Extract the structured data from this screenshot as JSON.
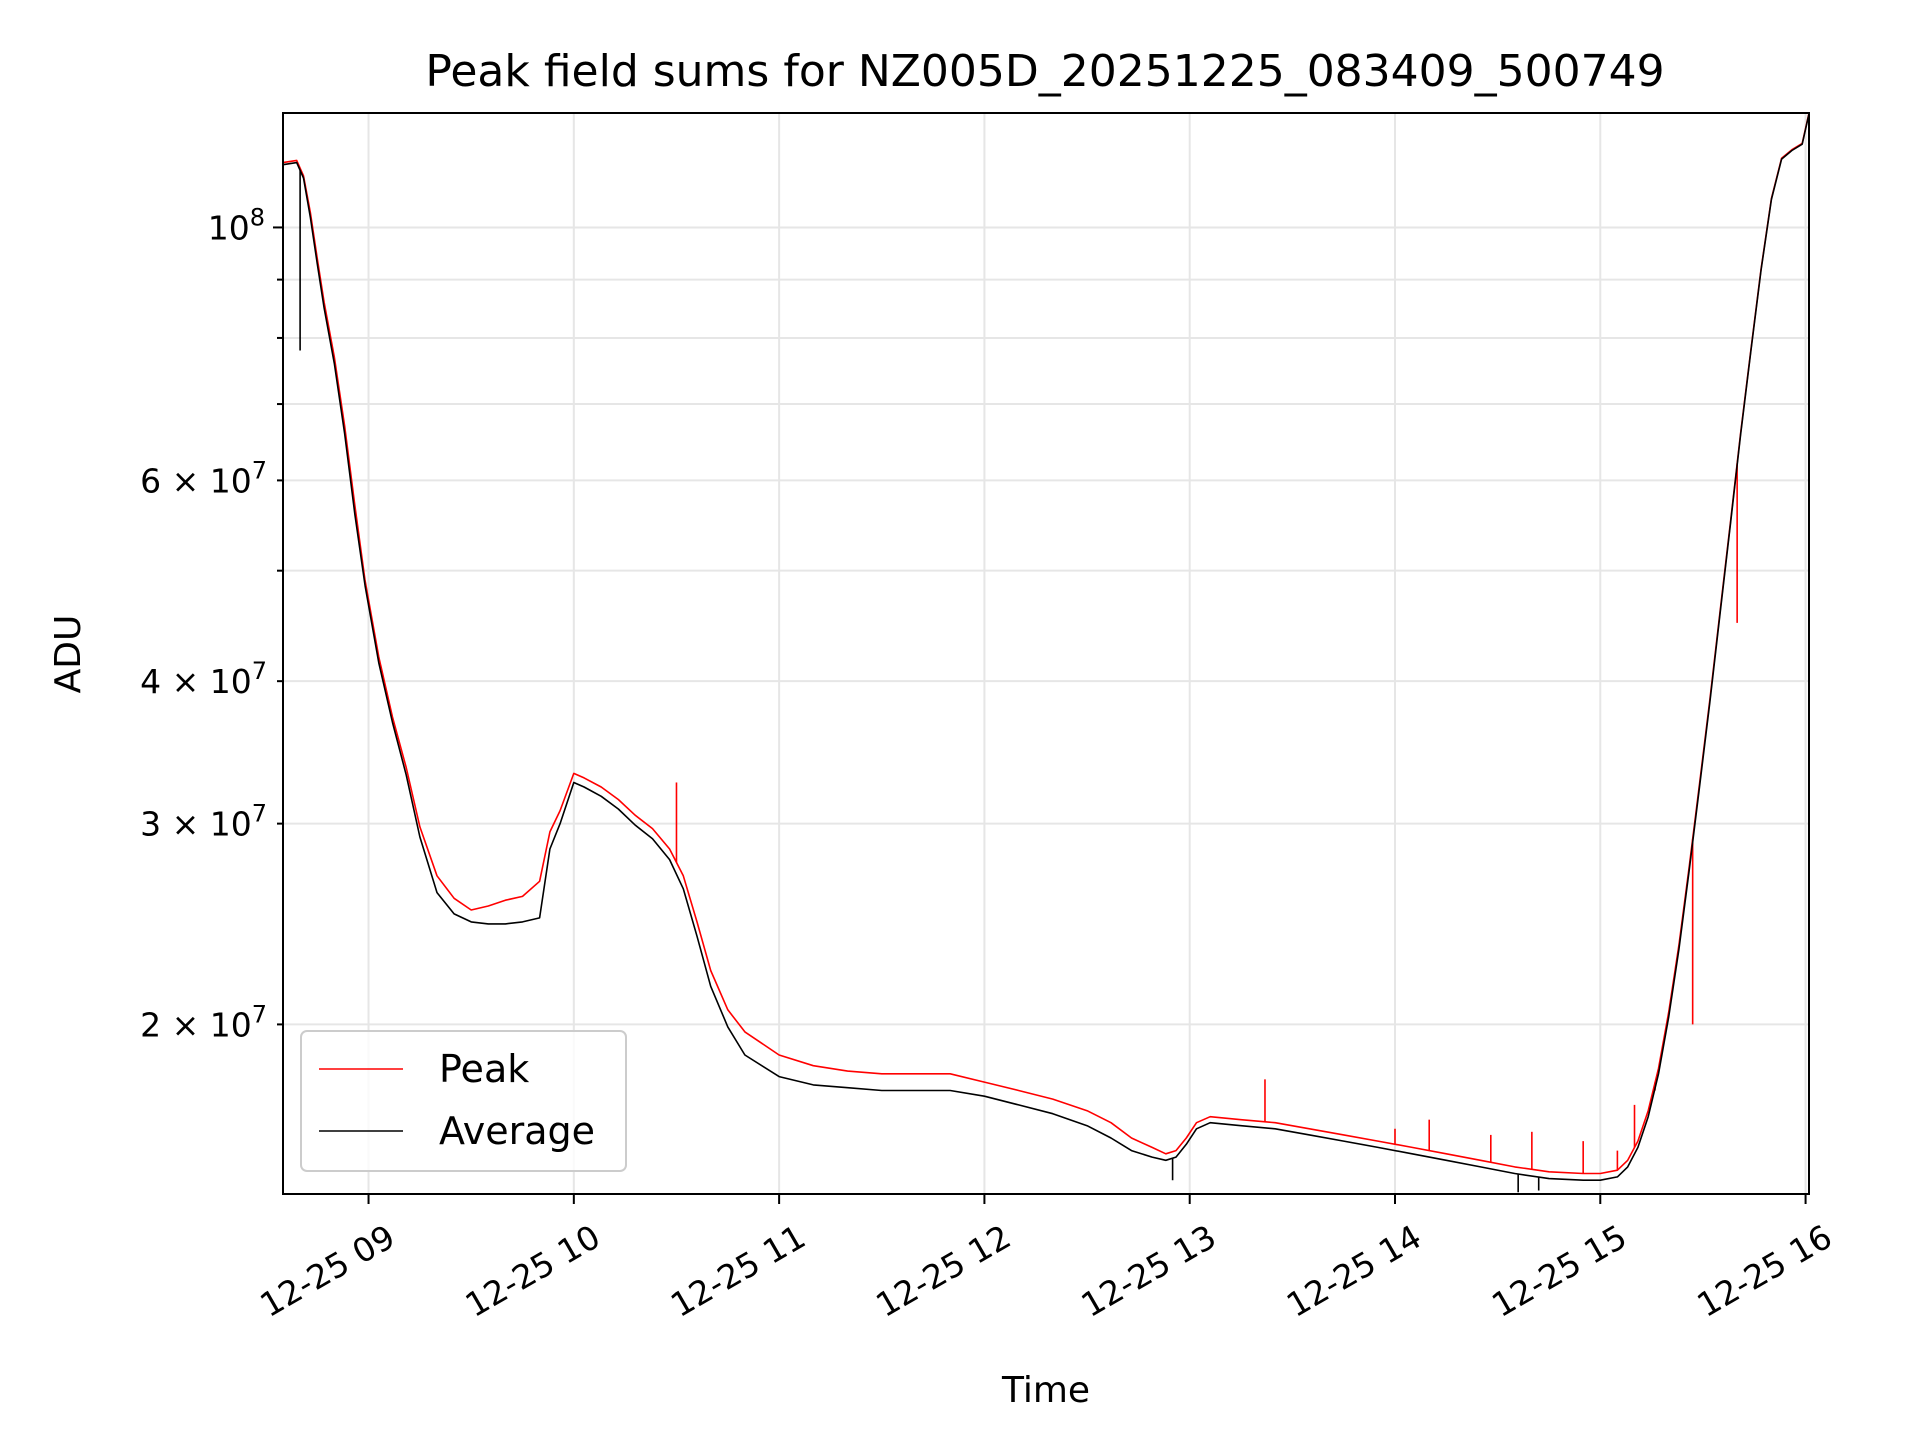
{
  "chart_data": {
    "type": "line",
    "title": "Peak field sums for NZ005D_20251225_083409_500749",
    "xlabel": "Time",
    "ylabel": "ADU",
    "yscale": "log",
    "grid": true,
    "legend_position": "lower-left",
    "xlim": [
      "2025-12-25 08:35",
      "2025-12-25 16:01"
    ],
    "ylim": [
      14200000,
      126000000
    ],
    "x_ticks": [
      {
        "value": "2025-12-25 09:00",
        "label": "12-25 09"
      },
      {
        "value": "2025-12-25 10:00",
        "label": "12-25 10"
      },
      {
        "value": "2025-12-25 11:00",
        "label": "12-25 11"
      },
      {
        "value": "2025-12-25 12:00",
        "label": "12-25 12"
      },
      {
        "value": "2025-12-25 13:00",
        "label": "12-25 13"
      },
      {
        "value": "2025-12-25 14:00",
        "label": "12-25 14"
      },
      {
        "value": "2025-12-25 15:00",
        "label": "12-25 15"
      },
      {
        "value": "2025-12-25 16:00",
        "label": "12-25 16"
      }
    ],
    "y_ticks_major": [
      {
        "value": 100000000,
        "base": "10",
        "exp": "8"
      }
    ],
    "y_ticks_minor": [
      {
        "value": 20000000,
        "mant": "2",
        "exp": "7"
      },
      {
        "value": 30000000,
        "mant": "3",
        "exp": "7"
      },
      {
        "value": 40000000,
        "mant": "4",
        "exp": "7"
      },
      {
        "value": 60000000,
        "mant": "6",
        "exp": "7"
      }
    ],
    "y_ticks_minor_unlabeled": [
      50000000,
      70000000,
      80000000,
      90000000
    ],
    "series": [
      {
        "name": "Peak",
        "color": "#ff0000",
        "x": [
          "2025-12-25 08:35",
          "2025-12-25 08:39",
          "2025-12-25 08:41",
          "2025-12-25 08:43",
          "2025-12-25 08:45",
          "2025-12-25 08:47",
          "2025-12-25 08:50",
          "2025-12-25 08:53",
          "2025-12-25 08:56",
          "2025-12-25 08:59",
          "2025-12-25 09:03",
          "2025-12-25 09:07",
          "2025-12-25 09:11",
          "2025-12-25 09:15",
          "2025-12-25 09:20",
          "2025-12-25 09:25",
          "2025-12-25 09:30",
          "2025-12-25 09:35",
          "2025-12-25 09:40",
          "2025-12-25 09:45",
          "2025-12-25 09:50",
          "2025-12-25 09:53",
          "2025-12-25 09:56",
          "2025-12-25 10:00",
          "2025-12-25 10:03",
          "2025-12-25 10:08",
          "2025-12-25 10:13",
          "2025-12-25 10:18",
          "2025-12-25 10:23",
          "2025-12-25 10:28",
          "2025-12-25 10:32",
          "2025-12-25 10:36",
          "2025-12-25 10:40",
          "2025-12-25 10:45",
          "2025-12-25 10:50",
          "2025-12-25 11:00",
          "2025-12-25 11:10",
          "2025-12-25 11:20",
          "2025-12-25 11:30",
          "2025-12-25 11:40",
          "2025-12-25 11:50",
          "2025-12-25 12:00",
          "2025-12-25 12:10",
          "2025-12-25 12:20",
          "2025-12-25 12:30",
          "2025-12-25 12:37",
          "2025-12-25 12:43",
          "2025-12-25 12:49",
          "2025-12-25 12:53",
          "2025-12-25 12:56",
          "2025-12-25 12:59",
          "2025-12-25 13:02",
          "2025-12-25 13:06",
          "2025-12-25 13:15",
          "2025-12-25 13:25",
          "2025-12-25 13:35",
          "2025-12-25 13:45",
          "2025-12-25 13:55",
          "2025-12-25 14:05",
          "2025-12-25 14:15",
          "2025-12-25 14:25",
          "2025-12-25 14:35",
          "2025-12-25 14:45",
          "2025-12-25 14:55",
          "2025-12-25 15:00",
          "2025-12-25 15:05",
          "2025-12-25 15:08",
          "2025-12-25 15:11",
          "2025-12-25 15:14",
          "2025-12-25 15:17",
          "2025-12-25 15:20",
          "2025-12-25 15:23",
          "2025-12-25 15:26",
          "2025-12-25 15:29",
          "2025-12-25 15:32",
          "2025-12-25 15:35",
          "2025-12-25 15:38",
          "2025-12-25 15:41",
          "2025-12-25 15:44",
          "2025-12-25 15:47",
          "2025-12-25 15:50",
          "2025-12-25 15:53",
          "2025-12-25 15:56",
          "2025-12-25 15:59",
          "2025-12-25 16:01"
        ],
        "values": [
          114000000,
          114500000,
          111000000,
          103000000,
          94000000,
          86000000,
          77000000,
          67000000,
          57000000,
          49000000,
          42000000,
          37200000,
          33600000,
          29800000,
          27000000,
          25800000,
          25200000,
          25400000,
          25700000,
          25900000,
          26700000,
          29500000,
          30800000,
          33200000,
          32900000,
          32300000,
          31500000,
          30500000,
          29700000,
          28500000,
          27000000,
          24600000,
          22300000,
          20600000,
          19700000,
          18800000,
          18400000,
          18200000,
          18100000,
          18100000,
          18100000,
          17800000,
          17500000,
          17200000,
          16800000,
          16400000,
          15900000,
          15600000,
          15400000,
          15500000,
          15900000,
          16400000,
          16600000,
          16500000,
          16400000,
          16200000,
          16000000,
          15800000,
          15600000,
          15400000,
          15200000,
          15000000,
          14850000,
          14800000,
          14800000,
          14900000,
          15200000,
          15800000,
          16800000,
          18300000,
          20500000,
          23500000,
          27500000,
          32500000,
          38500000,
          46000000,
          55000000,
          66000000,
          78000000,
          92000000,
          106000000,
          115000000,
          117000000,
          118500000,
          126000000
        ]
      },
      {
        "name": "Average",
        "color": "#000000",
        "x": [
          "2025-12-25 08:35",
          "2025-12-25 08:39",
          "2025-12-25 08:41",
          "2025-12-25 08:43",
          "2025-12-25 08:45",
          "2025-12-25 08:47",
          "2025-12-25 08:50",
          "2025-12-25 08:53",
          "2025-12-25 08:56",
          "2025-12-25 08:59",
          "2025-12-25 09:03",
          "2025-12-25 09:07",
          "2025-12-25 09:11",
          "2025-12-25 09:15",
          "2025-12-25 09:20",
          "2025-12-25 09:25",
          "2025-12-25 09:30",
          "2025-12-25 09:35",
          "2025-12-25 09:40",
          "2025-12-25 09:45",
          "2025-12-25 09:50",
          "2025-12-25 09:53",
          "2025-12-25 09:56",
          "2025-12-25 10:00",
          "2025-12-25 10:03",
          "2025-12-25 10:08",
          "2025-12-25 10:13",
          "2025-12-25 10:18",
          "2025-12-25 10:23",
          "2025-12-25 10:28",
          "2025-12-25 10:32",
          "2025-12-25 10:36",
          "2025-12-25 10:40",
          "2025-12-25 10:45",
          "2025-12-25 10:50",
          "2025-12-25 11:00",
          "2025-12-25 11:10",
          "2025-12-25 11:20",
          "2025-12-25 11:30",
          "2025-12-25 11:40",
          "2025-12-25 11:50",
          "2025-12-25 12:00",
          "2025-12-25 12:10",
          "2025-12-25 12:20",
          "2025-12-25 12:30",
          "2025-12-25 12:37",
          "2025-12-25 12:43",
          "2025-12-25 12:49",
          "2025-12-25 12:53",
          "2025-12-25 12:56",
          "2025-12-25 12:59",
          "2025-12-25 13:02",
          "2025-12-25 13:06",
          "2025-12-25 13:15",
          "2025-12-25 13:25",
          "2025-12-25 13:35",
          "2025-12-25 13:45",
          "2025-12-25 13:55",
          "2025-12-25 14:05",
          "2025-12-25 14:15",
          "2025-12-25 14:25",
          "2025-12-25 14:35",
          "2025-12-25 14:45",
          "2025-12-25 14:55",
          "2025-12-25 15:00",
          "2025-12-25 15:05",
          "2025-12-25 15:08",
          "2025-12-25 15:11",
          "2025-12-25 15:14",
          "2025-12-25 15:17",
          "2025-12-25 15:20",
          "2025-12-25 15:23",
          "2025-12-25 15:26",
          "2025-12-25 15:29",
          "2025-12-25 15:32",
          "2025-12-25 15:35",
          "2025-12-25 15:38",
          "2025-12-25 15:41",
          "2025-12-25 15:44",
          "2025-12-25 15:47",
          "2025-12-25 15:50",
          "2025-12-25 15:53",
          "2025-12-25 15:56",
          "2025-12-25 15:59",
          "2025-12-25 16:01"
        ],
        "values": [
          113500000,
          114000000,
          110500000,
          102000000,
          93000000,
          85000000,
          76000000,
          66000000,
          56000000,
          48500000,
          41500000,
          36800000,
          33100000,
          29200000,
          26100000,
          25000000,
          24600000,
          24500000,
          24500000,
          24600000,
          24800000,
          28500000,
          30000000,
          32600000,
          32300000,
          31700000,
          30900000,
          29900000,
          29100000,
          27900000,
          26300000,
          23900000,
          21600000,
          19900000,
          18800000,
          18000000,
          17700000,
          17600000,
          17500000,
          17500000,
          17500000,
          17300000,
          17000000,
          16700000,
          16300000,
          15900000,
          15500000,
          15300000,
          15200000,
          15300000,
          15700000,
          16200000,
          16400000,
          16300000,
          16200000,
          16000000,
          15800000,
          15600000,
          15400000,
          15200000,
          15000000,
          14800000,
          14650000,
          14600000,
          14600000,
          14700000,
          15000000,
          15600000,
          16600000,
          18100000,
          20300000,
          23300000,
          27300000,
          32300000,
          38300000,
          45800000,
          54800000,
          65800000,
          77800000,
          91800000,
          105800000,
          114800000,
          116800000,
          118300000,
          125800000
        ]
      }
    ],
    "spikes": {
      "Peak": [
        {
          "x": "2025-12-25 10:30",
          "y": 32600000
        },
        {
          "x": "2025-12-25 13:22",
          "y": 17900000
        },
        {
          "x": "2025-12-25 14:00",
          "y": 16200000
        },
        {
          "x": "2025-12-25 14:10",
          "y": 16500000
        },
        {
          "x": "2025-12-25 14:28",
          "y": 16000000
        },
        {
          "x": "2025-12-25 14:40",
          "y": 16100000
        },
        {
          "x": "2025-12-25 14:55",
          "y": 15800000
        },
        {
          "x": "2025-12-25 15:05",
          "y": 15500000
        },
        {
          "x": "2025-12-25 15:10",
          "y": 17000000
        },
        {
          "x": "2025-12-25 15:16",
          "y": 17500000
        },
        {
          "x": "2025-12-25 15:27",
          "y": 20000000
        },
        {
          "x": "2025-12-25 15:40",
          "y": 45000000
        }
      ],
      "Average": [
        {
          "x": "2025-12-25 08:40",
          "y": 78000000
        },
        {
          "x": "2025-12-25 12:55",
          "y": 14600000
        },
        {
          "x": "2025-12-25 14:36",
          "y": 14250000
        },
        {
          "x": "2025-12-25 14:42",
          "y": 14300000
        }
      ]
    }
  }
}
